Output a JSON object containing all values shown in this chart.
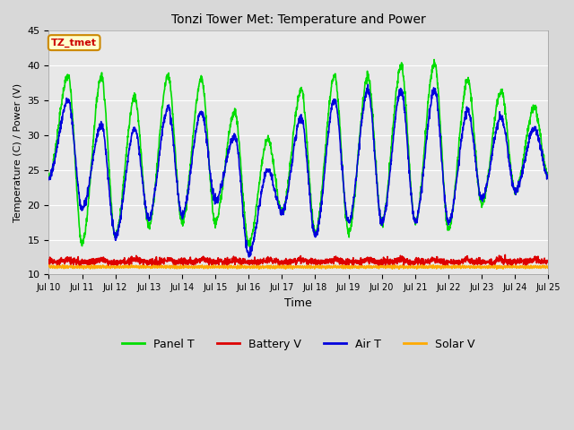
{
  "title": "Tonzi Tower Met: Temperature and Power",
  "xlabel": "Time",
  "ylabel": "Temperature (C) / Power (V)",
  "tag_label": "TZ_tmet",
  "tag_color": "#cc0000",
  "tag_bg": "#ffffcc",
  "tag_border": "#cc8800",
  "ylim": [
    10,
    45
  ],
  "yticks": [
    10,
    15,
    20,
    25,
    30,
    35,
    40,
    45
  ],
  "fig_bg": "#d8d8d8",
  "plot_bg": "#e8e8e8",
  "grid_color": "#ffffff",
  "series": {
    "panel_t": {
      "color": "#00dd00",
      "label": "Panel T",
      "lw": 1.2
    },
    "battery_v": {
      "color": "#dd0000",
      "label": "Battery V",
      "lw": 1.2
    },
    "air_t": {
      "color": "#0000dd",
      "label": "Air T",
      "lw": 1.2
    },
    "solar_v": {
      "color": "#ffaa00",
      "label": "Solar V",
      "lw": 1.2
    }
  },
  "n_days": 15,
  "ppd": 144,
  "start_day": 10,
  "panel_peaks": [
    38.5,
    38.5,
    35.5,
    38.5,
    38.0,
    33.5,
    29.5,
    36.5,
    38.5,
    38.5,
    40.0,
    40.5,
    38.0,
    36.5,
    34.0
  ],
  "panel_troughs": [
    24.0,
    14.5,
    15.5,
    17.0,
    17.5,
    17.5,
    14.5,
    19.0,
    16.0,
    16.0,
    17.5,
    17.5,
    16.5,
    20.0,
    22.0
  ],
  "air_peaks": [
    35.0,
    31.5,
    31.0,
    34.0,
    33.5,
    30.0,
    25.0,
    32.5,
    35.0,
    36.5,
    36.5,
    36.5,
    33.5,
    32.5,
    31.0
  ],
  "air_troughs": [
    24.0,
    19.5,
    15.5,
    18.0,
    18.5,
    20.5,
    13.0,
    19.0,
    15.5,
    17.5,
    17.5,
    17.5,
    17.5,
    21.0,
    22.0
  ]
}
